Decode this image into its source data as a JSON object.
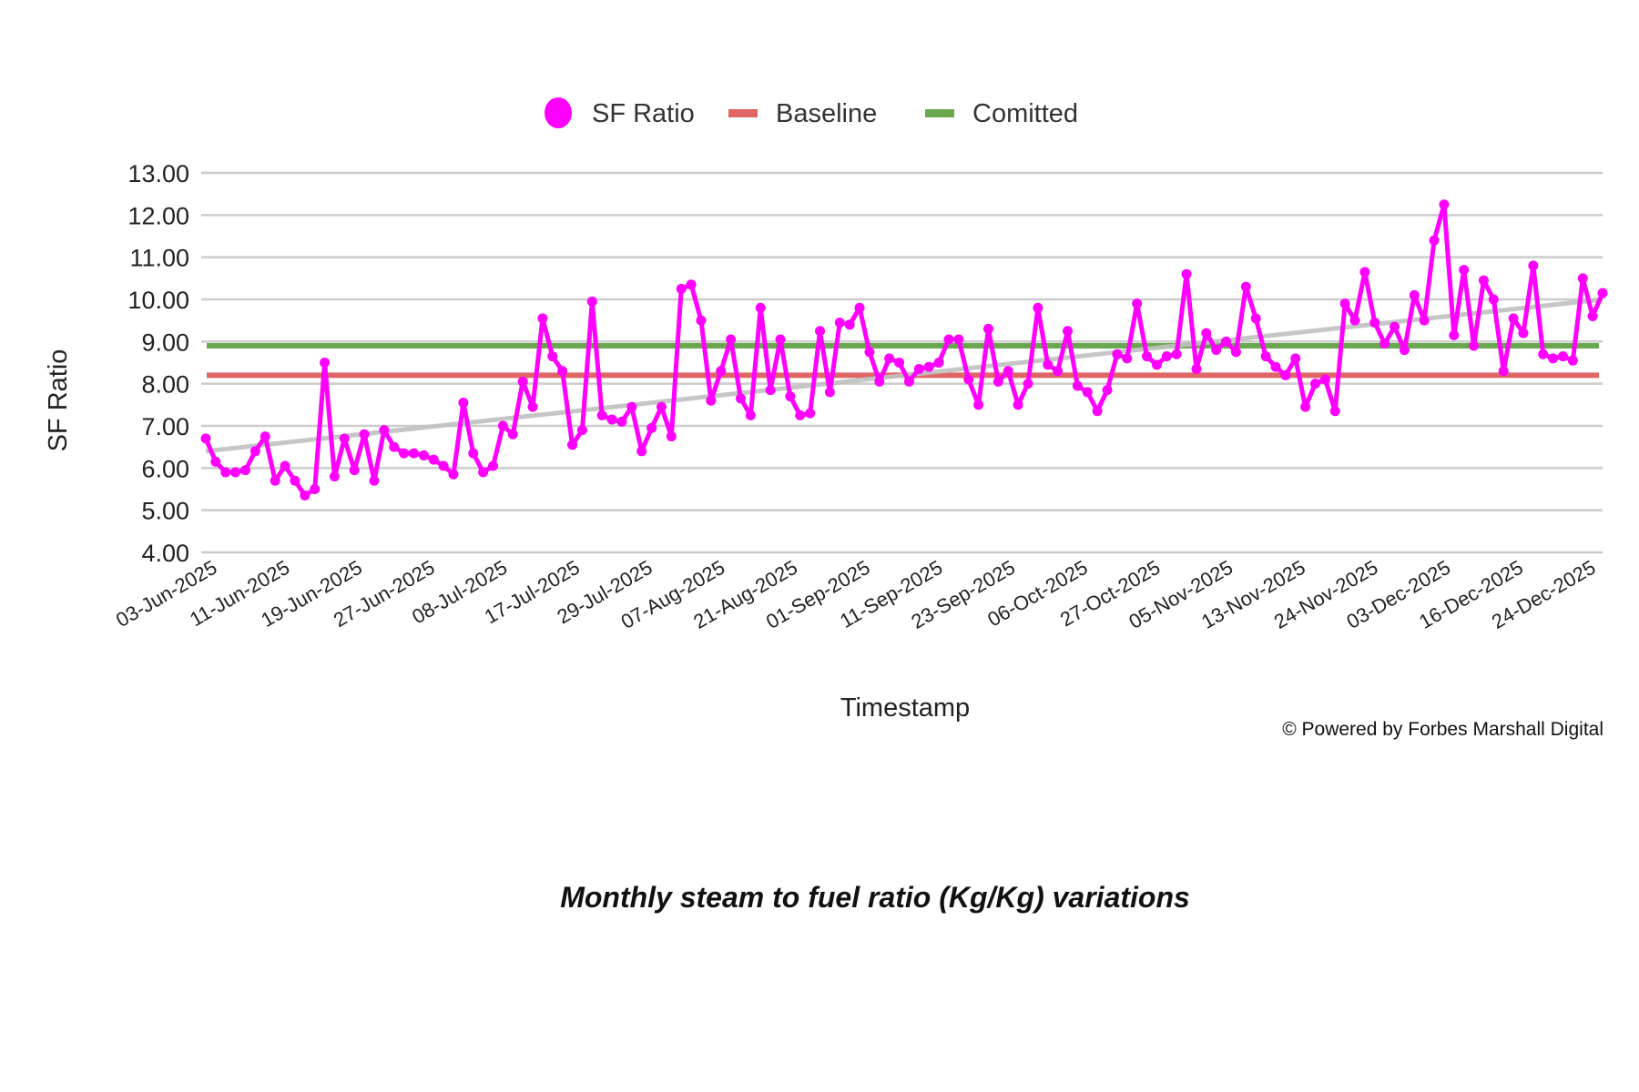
{
  "chart_data": {
    "type": "line",
    "title": "",
    "xlabel": "Timestamp",
    "ylabel": "SF Ratio",
    "ylim": [
      4,
      13
    ],
    "yticks": [
      "13.00",
      "12.00",
      "11.00",
      "10.00",
      "9.00",
      "8.00",
      "7.00",
      "6.00",
      "5.00",
      "4.00"
    ],
    "ytick_values": [
      13,
      12,
      11,
      10,
      9,
      8,
      7,
      6,
      5,
      4
    ],
    "grid": true,
    "legend_position": "top-center",
    "x_tick_labels": [
      "03-Jun-2025",
      "11-Jun-2025",
      "19-Jun-2025",
      "27-Jun-2025",
      "08-Jul-2025",
      "17-Jul-2025",
      "29-Jul-2025",
      "07-Aug-2025",
      "21-Aug-2025",
      "01-Sep-2025",
      "11-Sep-2025",
      "23-Sep-2025",
      "06-Oct-2025",
      "27-Oct-2025",
      "05-Nov-2025",
      "13-Nov-2025",
      "24-Nov-2025",
      "03-Dec-2025",
      "16-Dec-2025",
      "24-Dec-2025"
    ],
    "series": [
      {
        "name": "SF Ratio",
        "color": "#ff00ff",
        "style": "line-markers",
        "values": [
          6.7,
          6.15,
          5.9,
          5.9,
          5.95,
          6.4,
          6.75,
          5.7,
          6.05,
          5.7,
          5.35,
          5.5,
          8.5,
          5.8,
          6.7,
          5.95,
          6.8,
          5.7,
          6.9,
          6.5,
          6.35,
          6.35,
          6.3,
          6.2,
          6.05,
          5.85,
          7.55,
          6.35,
          5.9,
          6.05,
          7.0,
          6.8,
          8.05,
          7.45,
          9.55,
          8.65,
          8.3,
          6.55,
          6.9,
          9.95,
          7.25,
          7.15,
          7.1,
          7.45,
          6.4,
          6.95,
          7.45,
          6.75,
          10.25,
          10.35,
          9.5,
          7.6,
          8.3,
          9.05,
          7.65,
          7.25,
          9.8,
          7.85,
          9.05,
          7.7,
          7.25,
          7.3,
          9.25,
          7.8,
          9.45,
          9.4,
          9.8,
          8.75,
          8.05,
          8.6,
          8.5,
          8.05,
          8.35,
          8.4,
          8.5,
          9.05,
          9.05,
          8.1,
          7.5,
          9.3,
          8.05,
          8.3,
          7.5,
          8.0,
          9.8,
          8.45,
          8.3,
          9.25,
          7.95,
          7.8,
          7.35,
          7.85,
          8.7,
          8.6,
          9.9,
          8.65,
          8.45,
          8.65,
          8.7,
          10.6,
          8.35,
          9.2,
          8.8,
          9.0,
          8.75,
          10.3,
          9.55,
          8.65,
          8.4,
          8.2,
          8.6,
          7.45,
          8.0,
          8.1,
          7.35,
          9.9,
          9.5,
          10.65,
          9.45,
          8.95,
          9.35,
          8.8,
          10.1,
          9.5,
          11.4,
          12.25,
          9.15,
          10.7,
          8.9,
          10.45,
          10.0,
          8.3,
          9.55,
          9.2,
          10.8,
          8.7,
          8.6,
          8.65,
          8.55,
          10.5,
          9.6,
          10.15
        ]
      },
      {
        "name": "Baseline",
        "color": "#e06666",
        "style": "flat-line",
        "value": 8.2
      },
      {
        "name": "Comitted",
        "color": "#6aa84f",
        "style": "flat-line",
        "value": 8.9
      }
    ],
    "trendline": {
      "color": "#c0c0c0",
      "start": 6.4,
      "end": 10.0
    }
  },
  "legend": [
    {
      "label": "SF Ratio",
      "color": "#ff00ff",
      "marker": "circle"
    },
    {
      "label": "Baseline",
      "color": "#e06666",
      "marker": "bar"
    },
    {
      "label": "Comitted",
      "color": "#6aa84f",
      "marker": "bar"
    }
  ],
  "footer": "© Powered by Forbes Marshall Digital",
  "caption": "Monthly steam to fuel ratio (Kg/Kg) variations"
}
